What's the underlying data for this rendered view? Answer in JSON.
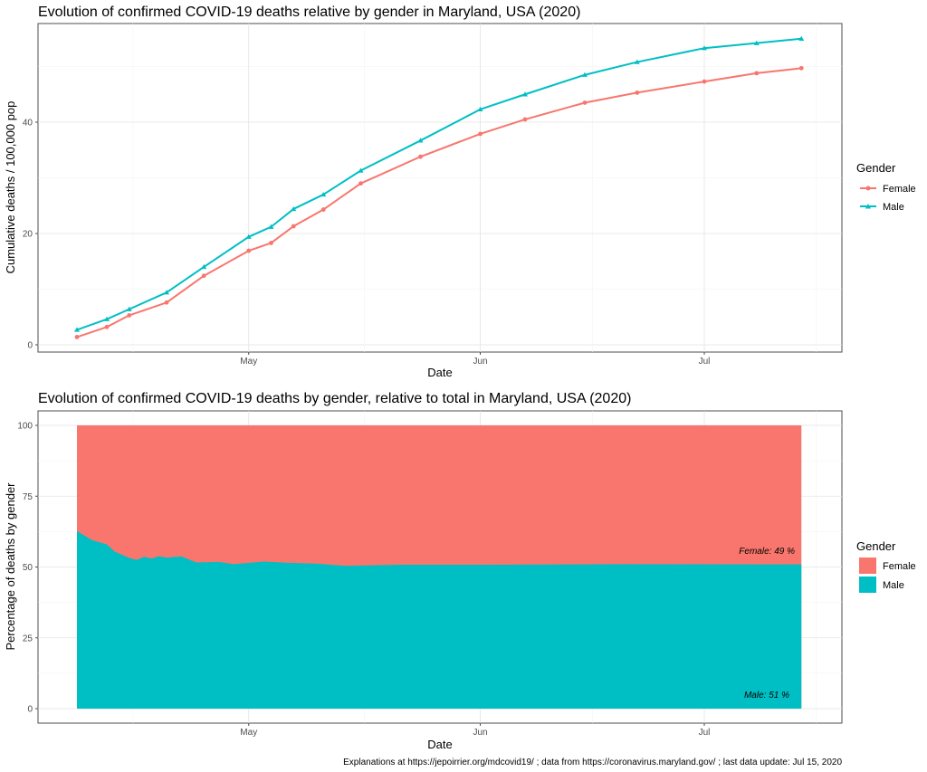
{
  "chart_data": [
    {
      "type": "line",
      "title": "Evolution of confirmed COVID-19 deaths relative by gender in Maryland, USA (2020)",
      "xlabel": "Date",
      "ylabel": "Cumulative deaths / 100,000 pop",
      "x_ticks": [
        "May",
        "Jun",
        "Jul"
      ],
      "x_tick_dates": [
        "2020-05-01",
        "2020-06-01",
        "2020-07-01"
      ],
      "y_ticks": [
        0,
        20,
        40
      ],
      "ylim": [
        0,
        56
      ],
      "xlim": [
        "2020-04-03",
        "2020-07-19"
      ],
      "grid": true,
      "legend_title": "Gender",
      "legend_position": "right",
      "x": [
        "2020-04-08",
        "2020-04-12",
        "2020-04-15",
        "2020-04-20",
        "2020-04-25",
        "2020-05-01",
        "2020-05-04",
        "2020-05-07",
        "2020-05-11",
        "2020-05-16",
        "2020-05-24",
        "2020-06-01",
        "2020-06-07",
        "2020-06-15",
        "2020-06-22",
        "2020-07-01",
        "2020-07-08",
        "2020-07-14"
      ],
      "series": [
        {
          "name": "Female",
          "color": "#F8766D",
          "marker": "circle",
          "values": [
            1.4,
            3.2,
            5.3,
            7.6,
            12.4,
            16.9,
            18.3,
            21.3,
            24.3,
            29.0,
            33.8,
            37.9,
            40.5,
            43.5,
            45.3,
            47.3,
            48.8,
            49.7
          ]
        },
        {
          "name": "Male",
          "color": "#00BFC4",
          "marker": "triangle",
          "values": [
            2.7,
            4.6,
            6.4,
            9.4,
            14.0,
            19.4,
            21.2,
            24.4,
            27.0,
            31.3,
            36.7,
            42.3,
            45.0,
            48.5,
            50.8,
            53.3,
            54.2,
            55.0
          ]
        }
      ]
    },
    {
      "type": "area",
      "stacked": true,
      "title": "Evolution of confirmed COVID-19 deaths by gender, relative to total in Maryland, USA (2020)",
      "xlabel": "Date",
      "ylabel": "Percentage of deaths by gender",
      "x_ticks": [
        "May",
        "Jun",
        "Jul"
      ],
      "x_tick_dates": [
        "2020-05-01",
        "2020-06-01",
        "2020-07-01"
      ],
      "y_ticks": [
        0,
        25,
        50,
        75,
        100
      ],
      "ylim": [
        0,
        100
      ],
      "grid": true,
      "legend_title": "Gender",
      "legend_position": "right",
      "legend": [
        {
          "name": "Female",
          "color": "#F8766D"
        },
        {
          "name": "Male",
          "color": "#00BFC4"
        }
      ],
      "x": [
        "2020-04-08",
        "2020-04-10",
        "2020-04-12",
        "2020-04-13",
        "2020-04-15",
        "2020-04-16",
        "2020-04-17",
        "2020-04-18",
        "2020-04-19",
        "2020-04-20",
        "2020-04-22",
        "2020-04-24",
        "2020-04-27",
        "2020-04-29",
        "2020-05-03",
        "2020-05-06",
        "2020-05-10",
        "2020-05-14",
        "2020-05-21",
        "2020-06-02",
        "2020-06-20",
        "2020-07-14"
      ],
      "male_pct": [
        62.7,
        59.5,
        58.0,
        55.5,
        53.2,
        52.5,
        53.6,
        53.0,
        53.8,
        53.3,
        53.7,
        51.6,
        51.8,
        51.0,
        51.9,
        51.5,
        51.2,
        50.4,
        50.8,
        50.8,
        51.0,
        50.9
      ],
      "annotations": {
        "female": "Female: 49 %",
        "male": "Male: 51 %"
      }
    }
  ],
  "footer": "Explanations at https://jepoirrier.org/mdcovid19/ ; data from https://coronavirus.maryland.gov/ ; last data update: Jul 15, 2020"
}
